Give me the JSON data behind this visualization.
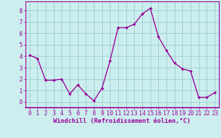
{
  "x": [
    0,
    1,
    2,
    3,
    4,
    5,
    6,
    7,
    8,
    9,
    10,
    11,
    12,
    13,
    14,
    15,
    16,
    17,
    18,
    19,
    20,
    21,
    22,
    23
  ],
  "y": [
    4.1,
    3.8,
    1.9,
    1.9,
    2.0,
    0.7,
    1.5,
    0.7,
    0.1,
    1.2,
    3.6,
    6.5,
    6.5,
    6.8,
    7.7,
    8.2,
    5.7,
    4.5,
    3.4,
    2.9,
    2.7,
    0.4,
    0.4,
    0.8
  ],
  "line_color": "#990099",
  "marker_color": "#990099",
  "bg_color": "#cceeee",
  "grid_color": "#99cccc",
  "axis_color": "#990099",
  "tick_color": "#990099",
  "spine_color": "#990099",
  "xlabel": "Windchill (Refroidissement éolien,°C)",
  "xlim": [
    -0.5,
    23.5
  ],
  "ylim": [
    -0.5,
    8.8
  ],
  "yticks": [
    0,
    1,
    2,
    3,
    4,
    5,
    6,
    7,
    8
  ],
  "xticks": [
    0,
    1,
    2,
    3,
    4,
    5,
    6,
    7,
    8,
    9,
    10,
    11,
    12,
    13,
    14,
    15,
    16,
    17,
    18,
    19,
    20,
    21,
    22,
    23
  ],
  "xlabel_fontsize": 6.5,
  "tick_fontsize": 6.0,
  "marker_size": 2.0,
  "linewidth": 1.0
}
